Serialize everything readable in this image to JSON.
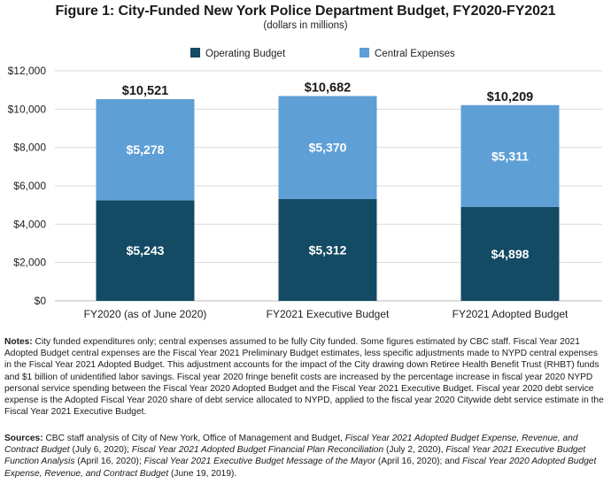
{
  "header": {
    "title": "Figure 1: City-Funded New York Police Department Budget, FY2020-FY2021",
    "subtitle": "(dollars in millions)"
  },
  "chart_data": {
    "type": "bar",
    "stacked": true,
    "categories": [
      "FY2020 (as of June 2020)",
      "FY2021 Executive Budget",
      "FY2021 Adopted Budget"
    ],
    "series": [
      {
        "name": "Operating Budget",
        "values": [
          5243,
          5312,
          4898
        ],
        "color": "#134a64",
        "labels": [
          "$5,243",
          "$5,312",
          "$4,898"
        ]
      },
      {
        "name": "Central Expenses",
        "values": [
          5278,
          5370,
          5311
        ],
        "color": "#5e9fd6",
        "labels": [
          "$5,278",
          "$5,370",
          "$5,311"
        ]
      }
    ],
    "totals": [
      10521,
      10682,
      10209
    ],
    "total_labels": [
      "$10,521",
      "$10,682",
      "$10,209"
    ],
    "ylim": [
      0,
      12000
    ],
    "yticks": [
      0,
      2000,
      4000,
      6000,
      8000,
      10000,
      12000
    ],
    "ytick_labels": [
      "$0",
      "$2,000",
      "$4,000",
      "$6,000",
      "$8,000",
      "$10,000",
      "$12,000"
    ],
    "grid": true,
    "legend_position": "top-center"
  },
  "notes": {
    "label": "Notes:",
    "text": " City funded expenditures only; central expenses assumed to be fully City funded. Some figures estimated by CBC staff. Fiscal Year 2021 Adopted Budget central expenses are the Fiscal Year 2021 Preliminary Budget estimates, less specific adjustments made to NYPD central expenses in the Fiscal Year 2021 Adopted Budget.  This adjustment accounts for the impact of the City drawing down Retiree Health Benefit Trust (RHBT) funds and $1 billion of unidentified labor savings. Fiscal year 2020 fringe benefit costs are increased by the percentage increase in fiscal year 2020 NYPD personal service spending between the Fiscal Year 2020 Adopted Budget and the Fiscal Year 2021 Executive Budget. Fiscal year 2020 debt service expense is the Adopted Fiscal Year 2020 share of debt service allocated to NYPD, applied to the fiscal year 2020 Citywide debt service estimate in the Fiscal Year 2021 Executive Budget."
  },
  "sources": {
    "label": "Sources:",
    "t1": " CBC staff analysis of City of New York, Office of Management and Budget, ",
    "i1": "Fiscal Year 2021 Adopted Budget Expense, Revenue, and Contract Budget",
    "t2": " (July 6, 2020);  ",
    "i2": "Fiscal Year 2021 Adopted Budget Financial Plan Reconciliation",
    "t3": " (July 2, 2020), ",
    "i3": "Fiscal Year 2021 Executive Budget Function Analysis",
    "t4": " (April 16, 2020); ",
    "i4": "Fiscal Year 2021 Executive Budget Message of the Mayor",
    "t5": " (April 16, 2020); and ",
    "i5": "Fiscal Year 2020 Adopted Budget Expense, Revenue, and Contract Budget",
    "t6": " (June 19, 2019)."
  }
}
